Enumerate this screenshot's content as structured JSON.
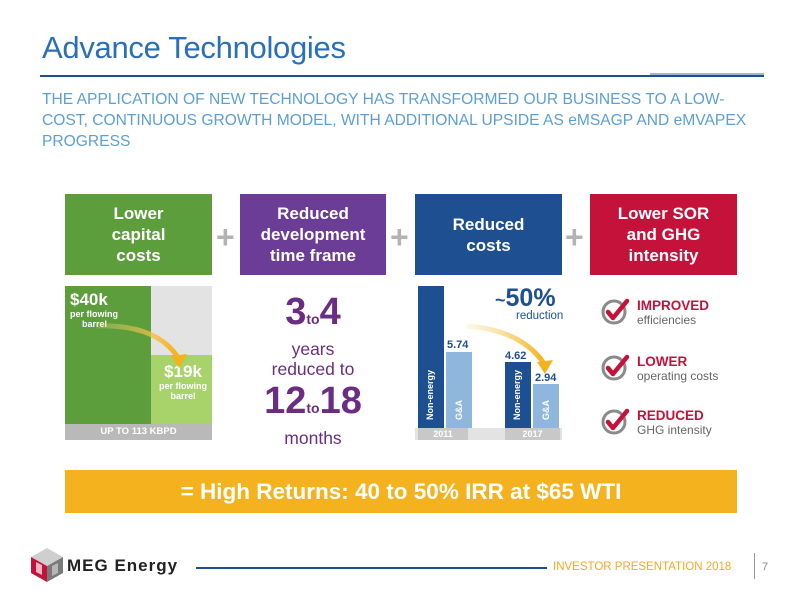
{
  "title": "Advance Technologies",
  "subtitle": "THE APPLICATION OF NEW TECHNOLOGY HAS TRANSFORMED OUR BUSINESS TO A LOW-COST, CONTINUOUS GROWTH MODEL, WITH ADDITIONAL UPSIDE AS eMSAGP AND eMVAPEX PROGRESS",
  "plus_sign": "+",
  "colors": {
    "green": "#5b9e3b",
    "purple": "#6b3d96",
    "blue": "#1d4f91",
    "red": "#c4123b",
    "light_green": "#a8d36a",
    "light_blue": "#8fb7de",
    "gold": "#f4b21e"
  },
  "headers": [
    {
      "line1": "Lower",
      "line2": "capital",
      "line3": "costs"
    },
    {
      "line1": "Reduced",
      "line2": "development",
      "line3": "time frame"
    },
    {
      "line1": "Reduced",
      "line2": "costs"
    },
    {
      "line1": "Lower SOR",
      "line2": "and GHG",
      "line3": "intensity"
    }
  ],
  "capital": {
    "before_value": "$40k",
    "before_sub1": "per flowing",
    "before_sub2": "barrel",
    "after_value": "$19k",
    "after_sub1": "per flowing",
    "after_sub2": "barrel",
    "footer": "UP TO 113 KBPD"
  },
  "timeframe": {
    "from_a": "3",
    "to_word": "to",
    "from_b": "4",
    "years": "years",
    "reduced_to": "reduced to",
    "to_a": "12",
    "to_b": "18",
    "months": "months"
  },
  "costs": {
    "tilde": "~",
    "pct": "50%",
    "reduction": "reduction",
    "year_2011": "2011",
    "year_2017": "2017",
    "nonenergy_2011": "9.71",
    "ga_2011": "5.74",
    "nonenergy_2017": "4.62",
    "ga_2017": "2.94",
    "label_nonenergy": "Non-energy",
    "label_ga": "G&A"
  },
  "checks": [
    {
      "title": "IMPROVED",
      "sub": "efficiencies",
      "icon": "check-circle-icon"
    },
    {
      "title": "LOWER",
      "sub": "operating costs",
      "icon": "check-circle-icon"
    },
    {
      "title": "REDUCED",
      "sub": "GHG intensity",
      "icon": "check-circle-icon"
    }
  ],
  "banner": "= High Returns: 40 to 50% IRR at $65 WTI",
  "footer": {
    "company": "MEG Energy",
    "presentation": "INVESTOR PRESENTATION 2018",
    "page": "7"
  }
}
